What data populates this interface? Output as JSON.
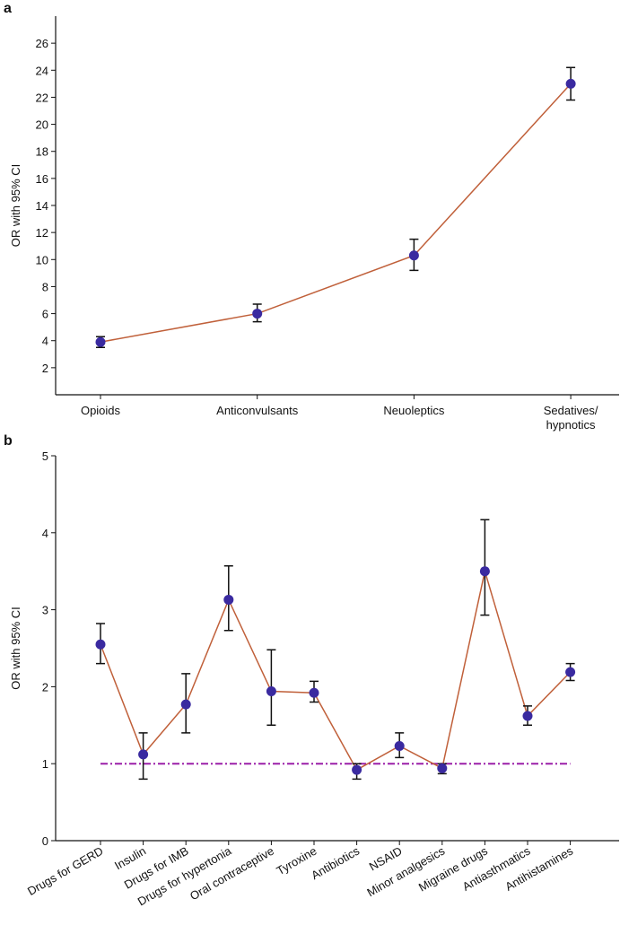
{
  "chart_data": [
    {
      "type": "line",
      "panel_label": "a",
      "y_label": "OR with 95% CI",
      "categories": [
        "Opioids",
        "Anticonvulsants",
        "Neuoleptics",
        "Sedatives/\nhypnotics"
      ],
      "series": [
        {
          "color": "#c0603a",
          "marker_color": "#3a2aa0",
          "values": [
            3.9,
            6.0,
            10.3,
            23.0
          ],
          "ci_lower": [
            3.5,
            5.4,
            9.2,
            21.8
          ],
          "ci_upper": [
            4.3,
            6.7,
            11.5,
            24.2
          ]
        }
      ],
      "ylim": [
        0,
        28
      ],
      "yticks": [
        2,
        4,
        6,
        8,
        10,
        12,
        14,
        16,
        18,
        20,
        22,
        24,
        26
      ]
    },
    {
      "type": "line",
      "panel_label": "b",
      "y_label": "OR with 95% CI",
      "categories": [
        "Drugs for GERD",
        "Insulin",
        "Drugs for IMB",
        "Drugs for hypertonia",
        "Oral contraceptive",
        "Tyroxine",
        "Antibiotics",
        "NSAID",
        "Minor analgesics",
        "Migraine drugs",
        "Antiasthmatics",
        "Antihistamines"
      ],
      "series": [
        {
          "color": "#c0603a",
          "marker_color": "#3a2aa0",
          "values": [
            2.55,
            1.12,
            1.77,
            3.13,
            1.94,
            1.92,
            0.92,
            1.23,
            0.94,
            3.5,
            1.62,
            2.19
          ],
          "ci_lower": [
            2.3,
            0.8,
            1.4,
            2.73,
            1.5,
            1.8,
            0.8,
            1.08,
            0.87,
            2.93,
            1.5,
            2.08
          ],
          "ci_upper": [
            2.82,
            1.4,
            2.17,
            3.57,
            2.48,
            2.07,
            1.0,
            1.4,
            1.0,
            4.17,
            1.75,
            2.3
          ]
        }
      ],
      "reference_line": {
        "value": 1,
        "color": "#9b1fa8"
      },
      "ylim": [
        0,
        5
      ],
      "yticks": [
        0,
        1,
        2,
        3,
        4,
        5
      ]
    }
  ]
}
